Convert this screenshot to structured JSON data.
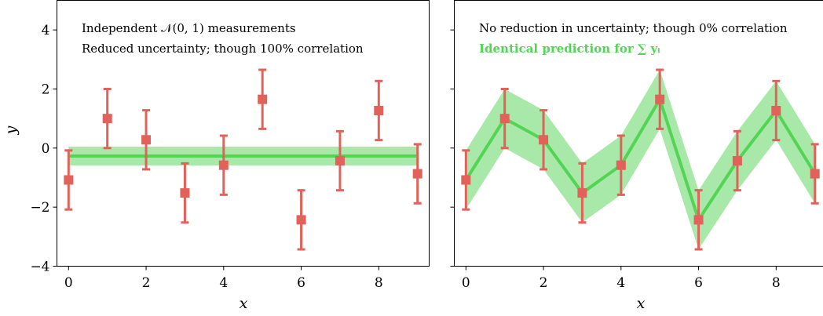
{
  "colors": {
    "marker": "#e0625a",
    "line": "#54d454",
    "band": "#a8e8a8",
    "green_text": "#54d454"
  },
  "chart_data": [
    {
      "type": "line",
      "subtype": "errorbar-with-band",
      "xlabel": "x",
      "ylabel": "y",
      "xlim": [
        -0.3,
        9.3
      ],
      "ylim": [
        -4,
        5
      ],
      "xticks": [
        "0",
        "2",
        "4",
        "6",
        "8"
      ],
      "yticks": [
        "−4",
        "−2",
        "0",
        "2",
        "4"
      ],
      "annotations": [
        "Independent 𝒩(0, 1) measurements",
        "Reduced uncertainty; though 100% correlation"
      ],
      "x": [
        0,
        1,
        2,
        3,
        4,
        5,
        6,
        7,
        8,
        9
      ],
      "points": [
        -1.08,
        1.0,
        0.28,
        -1.52,
        -0.58,
        1.65,
        -2.43,
        -0.43,
        1.27,
        -0.87
      ],
      "errors": [
        1.0,
        1.0,
        1.0,
        1.0,
        1.0,
        1.0,
        1.0,
        1.0,
        1.0,
        1.0
      ],
      "prediction": [
        -0.27,
        -0.27,
        -0.27,
        -0.27,
        -0.27,
        -0.27,
        -0.27,
        -0.27,
        -0.27,
        -0.27
      ],
      "band_halfwidth": 0.32
    },
    {
      "type": "line",
      "subtype": "errorbar-with-band",
      "xlabel": "x",
      "ylabel": "",
      "xlim": [
        -0.3,
        9.3
      ],
      "ylim": [
        -4,
        5
      ],
      "xticks": [
        "0",
        "2",
        "4",
        "6",
        "8"
      ],
      "yticks": [],
      "annotations": [
        "No reduction in uncertainty; though 0% correlation"
      ],
      "green_annotation": "Identical prediction for ∑ yᵢ",
      "x": [
        0,
        1,
        2,
        3,
        4,
        5,
        6,
        7,
        8,
        9
      ],
      "points": [
        -1.08,
        1.0,
        0.28,
        -1.52,
        -0.58,
        1.65,
        -2.43,
        -0.43,
        1.27,
        -0.87
      ],
      "errors": [
        1.0,
        1.0,
        1.0,
        1.0,
        1.0,
        1.0,
        1.0,
        1.0,
        1.0,
        1.0
      ],
      "prediction": [
        -1.08,
        1.0,
        0.28,
        -1.52,
        -0.58,
        1.65,
        -2.43,
        -0.43,
        1.27,
        -0.87
      ],
      "band_halfwidth": 1.0
    }
  ]
}
